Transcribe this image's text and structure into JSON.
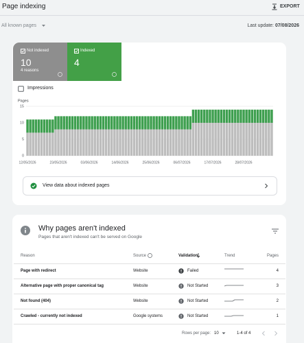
{
  "header": {
    "title": "Page indexing",
    "export": "EXPORT"
  },
  "filter": {
    "scope": "All known pages",
    "last_update_label": "Last update:",
    "last_update": "07/08/2026"
  },
  "summary": {
    "not_indexed": {
      "label": "Not indexed",
      "value": 10,
      "sub": "4 reasons"
    },
    "indexed": {
      "label": "Indexed",
      "value": 4
    }
  },
  "impressions": "Impressions",
  "chart_data": {
    "type": "bar",
    "stacked": true,
    "y_label": "Pages",
    "categories": [
      "12/05/2026",
      null,
      null,
      null,
      null,
      null,
      null,
      null,
      null,
      null,
      null,
      "23/05/2026",
      null,
      null,
      null,
      null,
      null,
      null,
      null,
      null,
      null,
      null,
      "03/06/2026",
      null,
      null,
      null,
      null,
      null,
      null,
      null,
      null,
      null,
      null,
      "14/06/2026",
      null,
      null,
      null,
      null,
      null,
      null,
      null,
      null,
      null,
      null,
      "25/06/2026",
      null,
      null,
      null,
      null,
      null,
      null,
      null,
      null,
      null,
      null,
      "06/07/2026",
      null,
      null,
      null,
      null,
      null,
      null,
      null,
      null,
      null,
      null,
      "17/07/2026",
      null,
      null,
      null,
      null,
      null,
      null,
      null,
      null,
      null,
      null,
      "28/07/2026",
      null,
      null,
      null,
      null,
      null,
      null,
      null,
      null,
      null,
      null
    ],
    "series": [
      {
        "color": "#bdbdbd",
        "values": [
          7,
          7,
          7,
          7,
          7,
          7,
          7,
          7,
          7,
          7,
          8,
          8,
          8,
          8,
          8,
          8,
          8,
          8,
          8,
          8,
          8,
          8,
          8,
          8,
          8,
          8,
          8,
          8,
          8,
          8,
          8,
          8,
          8,
          8,
          8,
          8,
          8,
          8,
          8,
          8,
          8,
          8,
          8,
          8,
          8,
          8,
          8,
          8,
          8,
          8,
          8,
          8,
          8,
          8,
          8,
          8,
          8,
          8,
          8,
          10,
          10,
          10,
          10,
          10,
          10,
          10,
          10,
          10,
          10,
          10,
          10,
          10,
          10,
          10,
          10,
          10,
          10,
          10,
          10,
          10,
          10,
          10,
          10,
          10,
          10,
          10,
          10,
          10
        ]
      },
      {
        "color": "#3e9f4f",
        "values": [
          4,
          4,
          4,
          4,
          4,
          4,
          4,
          4,
          4,
          4,
          4,
          4,
          4,
          4,
          4,
          4,
          4,
          4,
          4,
          4,
          4,
          4,
          4,
          4,
          4,
          4,
          4,
          4,
          4,
          4,
          4,
          4,
          4,
          4,
          4,
          4,
          4,
          4,
          4,
          4,
          4,
          4,
          4,
          4,
          4,
          4,
          4,
          4,
          4,
          4,
          4,
          4,
          4,
          4,
          4,
          4,
          4,
          4,
          4,
          4,
          4,
          4,
          4,
          4,
          4,
          4,
          4,
          4,
          4,
          4,
          4,
          4,
          4,
          4,
          4,
          4,
          4,
          4,
          4,
          4,
          4,
          4,
          4,
          4,
          4,
          4,
          4,
          4
        ]
      }
    ],
    "ylim": [
      0,
      15
    ],
    "yticks": [
      0,
      5,
      10,
      15
    ],
    "grid": true
  },
  "view_data": "View data about indexed pages",
  "reasons": {
    "title": "Why pages aren't indexed",
    "subtitle": "Pages that aren't indexed can't be served on Google",
    "columns": [
      "Reason",
      "Source",
      "Validation",
      "Trend",
      "Pages"
    ],
    "rows": [
      [
        "Page with redirect",
        "Website",
        "Failed",
        4
      ],
      [
        "Alternative page with proper canonical tag",
        "Website",
        "Not Started",
        3
      ],
      [
        "Not found (404)",
        "Website",
        "Not Started",
        2
      ],
      [
        "Crawled - currently not indexed",
        "Google systems",
        "Not Started",
        1
      ]
    ]
  },
  "pagination": {
    "rows_label": "Rows per page:",
    "rows": "10",
    "range": "1-4 of 4"
  }
}
